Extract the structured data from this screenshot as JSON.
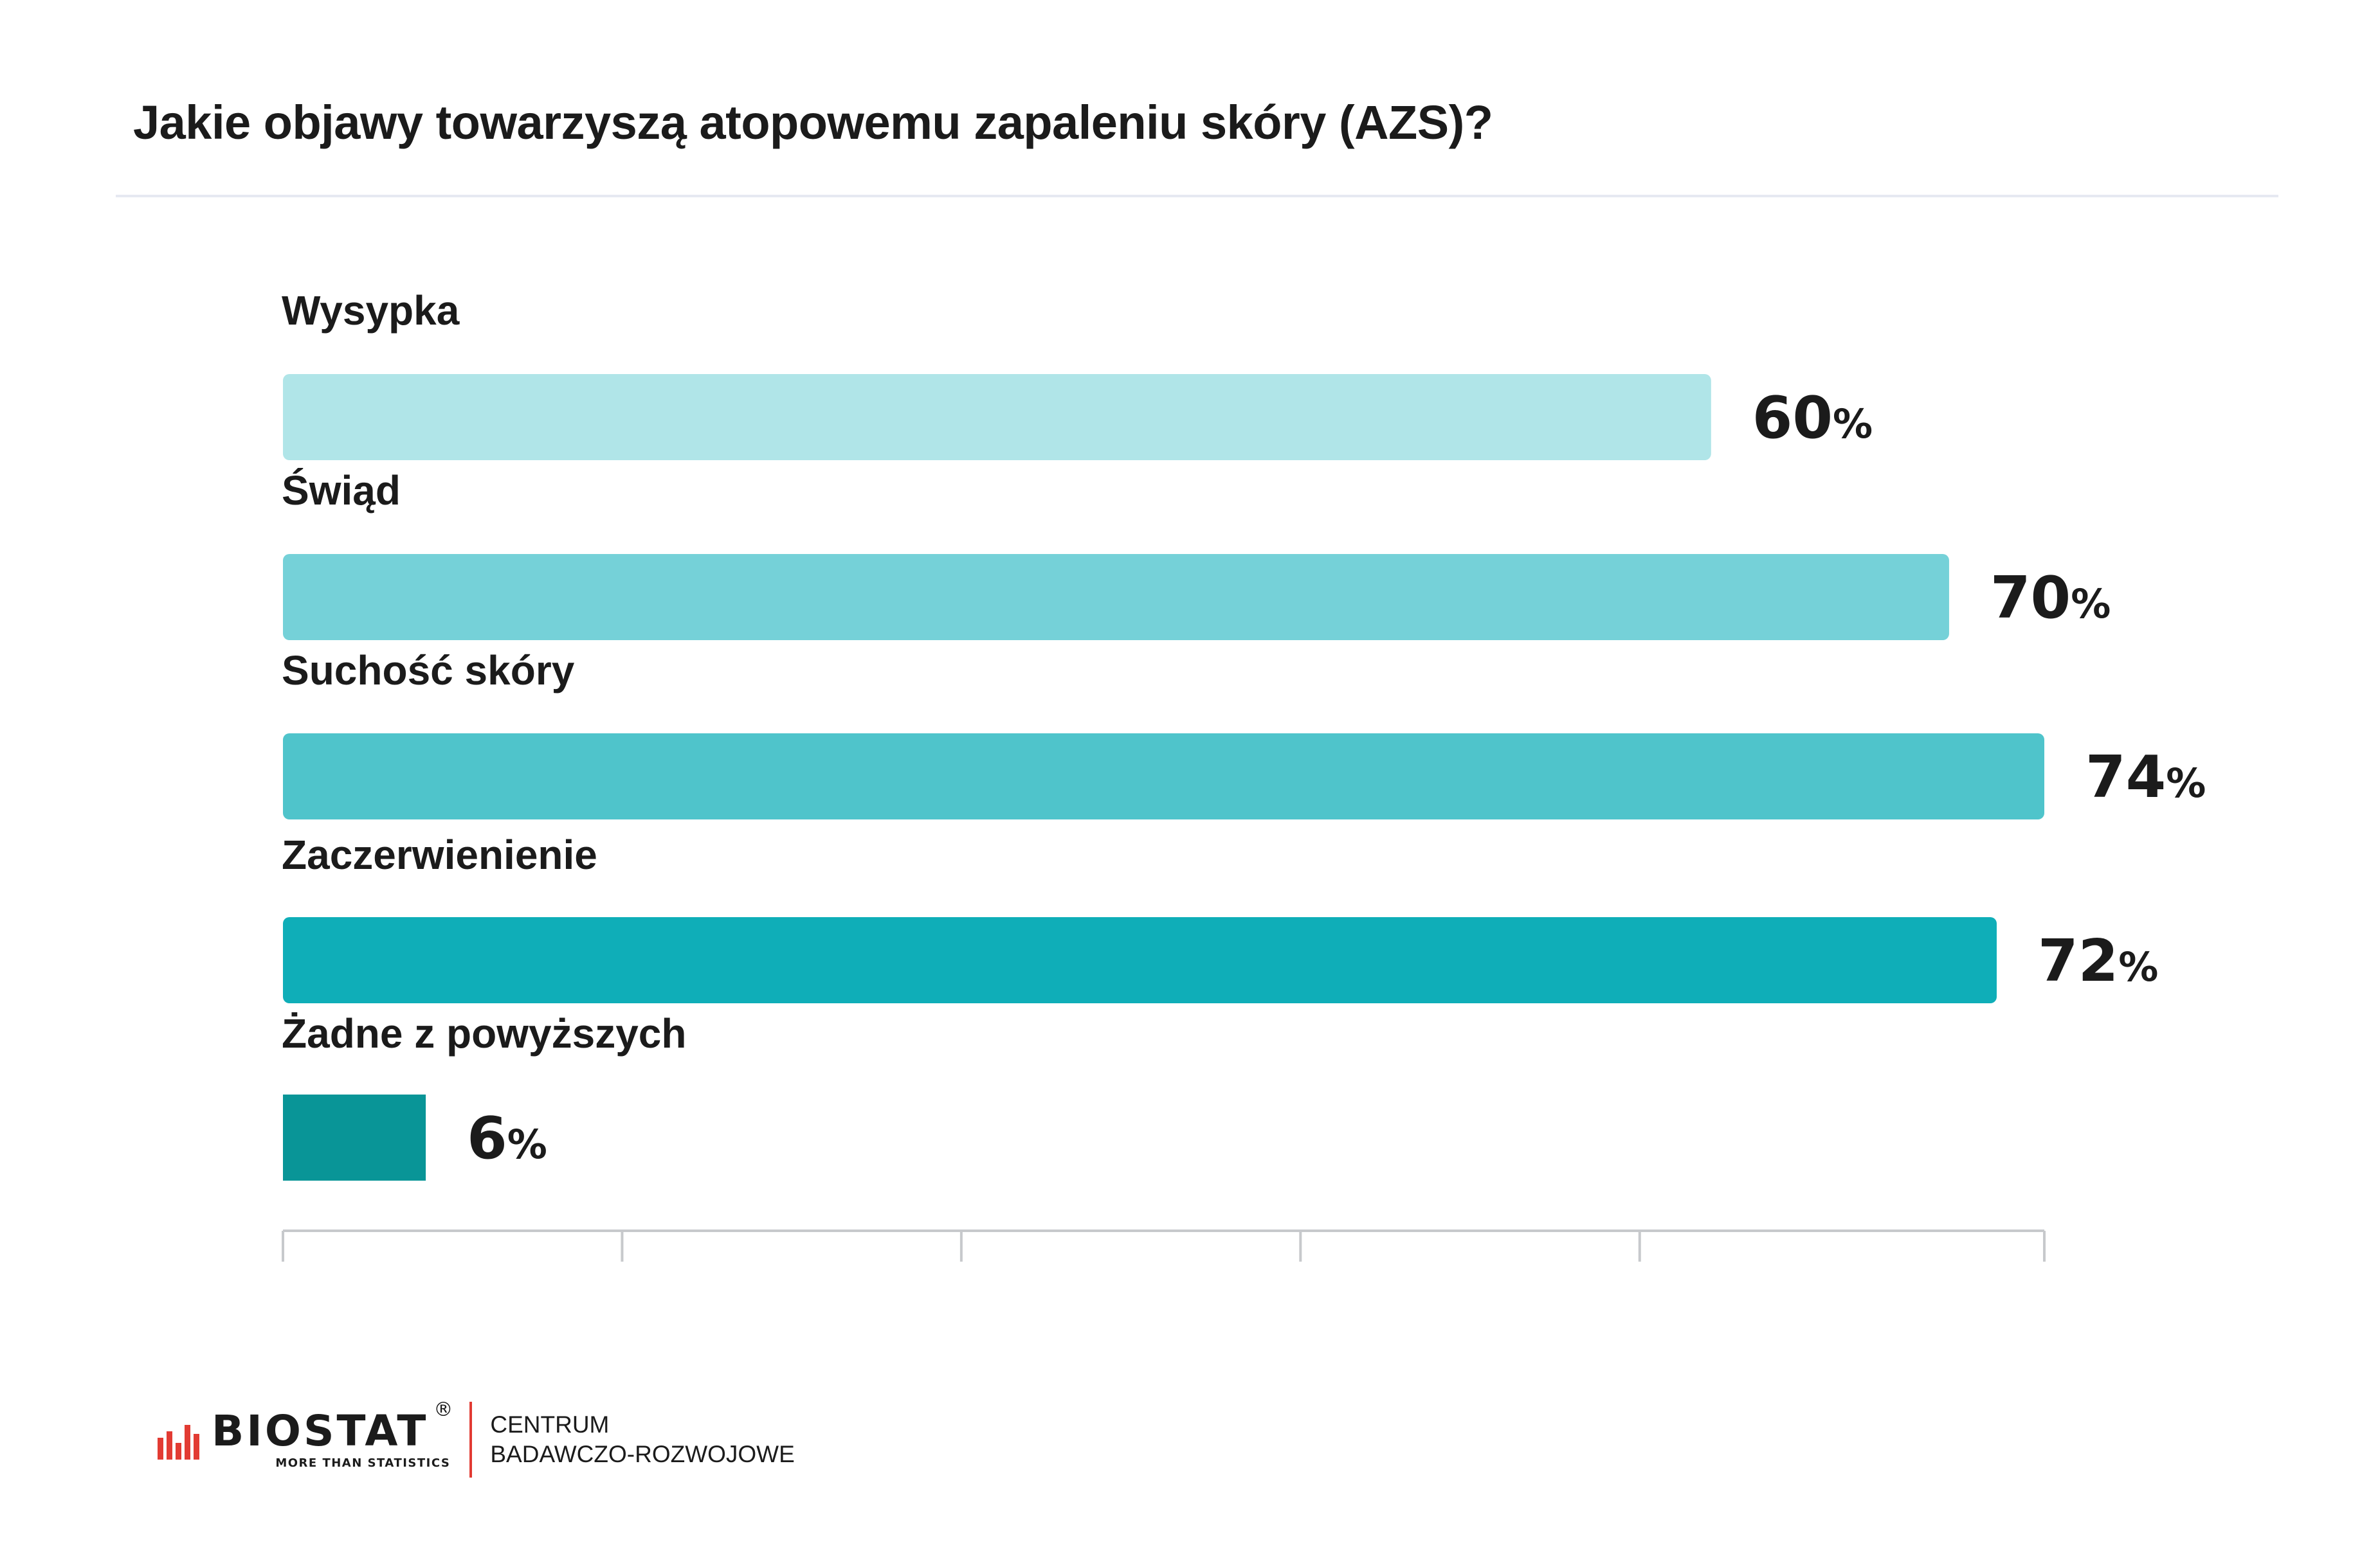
{
  "title": "Jakie objawy towarzyszą atopowemu zapaleniu skóry (AZS)?",
  "chart_data": {
    "type": "bar",
    "orientation": "horizontal",
    "categories": [
      "Wysypka",
      "Świąd",
      "Suchość skóry",
      "Zaczerwienienie",
      "Żadne z powyższych"
    ],
    "values": [
      60,
      70,
      74,
      72,
      6
    ],
    "value_suffix": "%",
    "xlim": [
      0,
      74
    ],
    "ticks": [
      0,
      14.25,
      28.5,
      42.75,
      57,
      74
    ],
    "colors": [
      "#b0e5e8",
      "#75d1d8",
      "#4fc4cb",
      "#0faeb8",
      "#099597"
    ],
    "grid": false,
    "legend": "none"
  },
  "footer": {
    "logo_word": "BIOSTAT",
    "logo_registered": "®",
    "logo_tagline": "MORE THAN STATISTICS",
    "org_line1": "CENTRUM",
    "org_line2": "BADAWCZO-ROZWOJOWE",
    "logo_color_red": "#e23b33"
  }
}
